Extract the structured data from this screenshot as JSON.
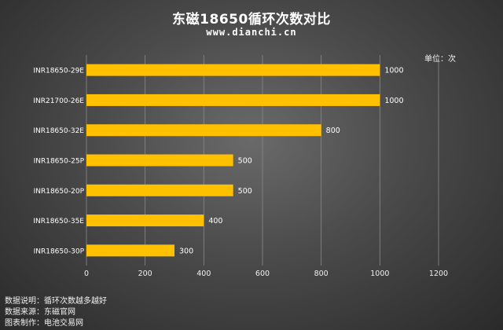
{
  "header": {
    "title": "东磁18650循环次数对比",
    "website": "www.dianchi.cn",
    "unit": "单位：次"
  },
  "notes": [
    {
      "label": "数据说明：",
      "value": "循环次数越多越好"
    },
    {
      "label": "数据来源：",
      "value": "东磁官网"
    },
    {
      "label": "图表制作：",
      "value": "电池交易网"
    }
  ],
  "colors": {
    "bar": "#FFC000",
    "grid": "#8a8a8a"
  },
  "chart_data": {
    "type": "bar",
    "orientation": "horizontal",
    "title": "东磁18650循环次数对比",
    "categories": [
      "INR18650-29E",
      "INR21700-26E",
      "INR18650-32E",
      "INR18650-25P",
      "INR18650-20P",
      "INR18650-35E",
      "INR18650-30P"
    ],
    "values": [
      1000,
      1000,
      800,
      500,
      500,
      400,
      300
    ],
    "xlim": [
      0,
      1200
    ],
    "ticks": [
      0,
      200,
      400,
      600,
      800,
      1000,
      1200
    ],
    "grid": "vertical",
    "data_labels": true
  }
}
